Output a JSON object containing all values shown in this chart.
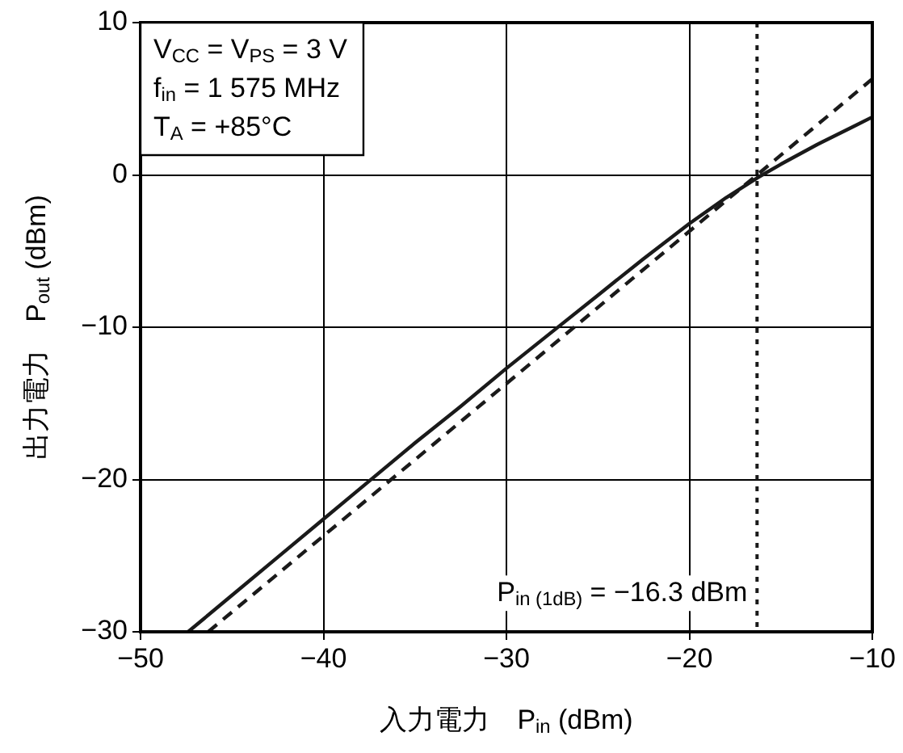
{
  "chart_data": {
    "type": "line",
    "xlabel": "入力電力　P$_{in}$ (dBm)",
    "ylabel": "出力電力　P$_{out}$ (dBm)",
    "x": [
      -47.4,
      -45,
      -42.5,
      -40,
      -37.5,
      -35,
      -32.5,
      -30,
      -27.5,
      -25,
      -22.5,
      -20,
      -18,
      -16.3,
      -15,
      -13,
      -11,
      -10
    ],
    "series": [
      {
        "color": "#1a1a1a",
        "line_style": "solid",
        "values": [
          -30,
          -27.6,
          -25.1,
          -22.6,
          -20.1,
          -17.6,
          -15.2,
          -12.7,
          -10.3,
          -7.9,
          -5.5,
          -3.2,
          -1.5,
          -0.2,
          0.7,
          2,
          3.2,
          3.8
        ]
      },
      {
        "color": "#1a1a1a",
        "line_style": "dashed",
        "x": [
          -46.3,
          -10
        ],
        "values": [
          -30,
          6.3
        ]
      }
    ],
    "xlim": [
      -50,
      -10
    ],
    "ylim": [
      -30,
      10
    ],
    "xticks": [
      -50,
      -40,
      -30,
      -20,
      -10
    ],
    "yticks": [
      -30,
      -20,
      -10,
      0,
      10
    ],
    "grid": true,
    "legend": false,
    "marker": "none",
    "ref_lines": [
      {
        "axis": "x",
        "value": -16.3,
        "line_style": "dotted",
        "color": "#1a1a1a"
      }
    ],
    "annotations": [
      "V$_{CC}$ = V$_{PS}$ = 3 V",
      "f$_{in}$ = 1 575 MHz",
      "T$_{A}$ = +85°C",
      {
        "text": "P$_{in (1dB)}$ = −16.3 dBm",
        "x": -16.3,
        "y": -28
      }
    ]
  }
}
